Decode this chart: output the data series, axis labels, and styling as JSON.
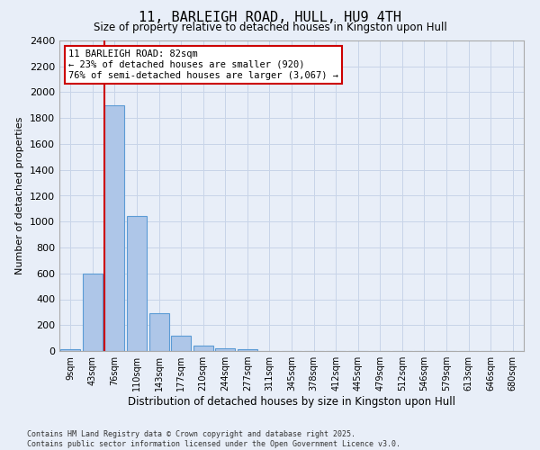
{
  "title": "11, BARLEIGH ROAD, HULL, HU9 4TH",
  "subtitle": "Size of property relative to detached houses in Kingston upon Hull",
  "xlabel": "Distribution of detached houses by size in Kingston upon Hull",
  "ylabel": "Number of detached properties",
  "categories": [
    "9sqm",
    "43sqm",
    "76sqm",
    "110sqm",
    "143sqm",
    "177sqm",
    "210sqm",
    "244sqm",
    "277sqm",
    "311sqm",
    "345sqm",
    "378sqm",
    "412sqm",
    "445sqm",
    "479sqm",
    "512sqm",
    "546sqm",
    "579sqm",
    "613sqm",
    "646sqm",
    "680sqm"
  ],
  "values": [
    15,
    600,
    1900,
    1040,
    295,
    115,
    45,
    20,
    15,
    0,
    0,
    0,
    0,
    0,
    0,
    0,
    0,
    0,
    0,
    0,
    0
  ],
  "bar_color": "#aec6e8",
  "bar_edge_color": "#5b9bd5",
  "grid_color": "#c8d4e8",
  "bg_color": "#e8eef8",
  "vline_color": "#cc0000",
  "annotation_text": "11 BARLEIGH ROAD: 82sqm\n← 23% of detached houses are smaller (920)\n76% of semi-detached houses are larger (3,067) →",
  "annotation_box_color": "#ffffff",
  "annotation_box_edge": "#cc0000",
  "footer": "Contains HM Land Registry data © Crown copyright and database right 2025.\nContains public sector information licensed under the Open Government Licence v3.0.",
  "ylim": [
    0,
    2400
  ],
  "yticks": [
    0,
    200,
    400,
    600,
    800,
    1000,
    1200,
    1400,
    1600,
    1800,
    2000,
    2200,
    2400
  ]
}
